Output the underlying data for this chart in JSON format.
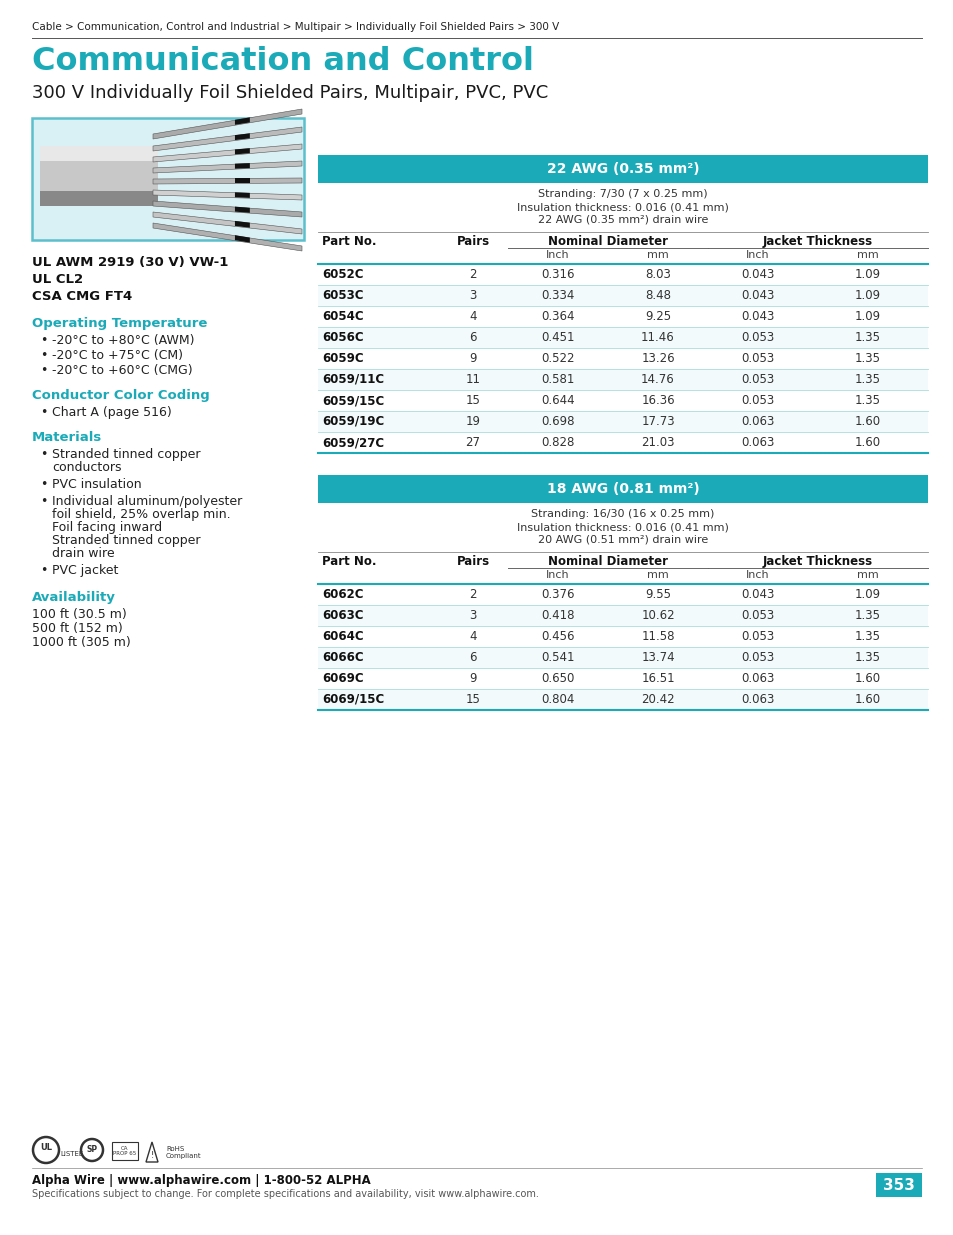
{
  "breadcrumb": "Cable > Communication, Control and Industrial > Multipair > Individually Foil Shielded Pairs > 300 V",
  "main_title": "Communication and Control",
  "subtitle": "300 V Individually Foil Shielded Pairs, Multipair, PVC, PVC",
  "cert_text": "UL AWM 2919 (30 V) VW-1\nUL CL2\nCSA CMG FT4",
  "op_temp_title": "Operating Temperature",
  "op_temp_items": [
    "-20°C to +80°C (AWM)",
    "-20°C to +75°C (CM)",
    "-20°C to +60°C (CMG)"
  ],
  "color_coding_title": "Conductor Color Coding",
  "color_coding_items": [
    "Chart A (page 516)"
  ],
  "materials_title": "Materials",
  "materials_items": [
    "Stranded tinned copper\nconductors",
    "PVC insulation",
    "Individual aluminum/polyester\nfoil shield, 25% overlap min.\nFoil facing inward\nStranded tinned copper\ndrain wire",
    "PVC jacket"
  ],
  "availability_title": "Availability",
  "availability_text": "100 ft (30.5 m)\n500 ft (152 m)\n1000 ft (305 m)",
  "table1_header": "22 AWG (0.35 mm²)",
  "table1_info": "Stranding: 7/30 (7 x 0.25 mm)\nInsulation thickness: 0.016 (0.41 mm)\n22 AWG (0.35 mm²) drain wire",
  "table1_rows": [
    [
      "6052C",
      "2",
      "0.316",
      "8.03",
      "0.043",
      "1.09"
    ],
    [
      "6053C",
      "3",
      "0.334",
      "8.48",
      "0.043",
      "1.09"
    ],
    [
      "6054C",
      "4",
      "0.364",
      "9.25",
      "0.043",
      "1.09"
    ],
    [
      "6056C",
      "6",
      "0.451",
      "11.46",
      "0.053",
      "1.35"
    ],
    [
      "6059C",
      "9",
      "0.522",
      "13.26",
      "0.053",
      "1.35"
    ],
    [
      "6059/11C",
      "11",
      "0.581",
      "14.76",
      "0.053",
      "1.35"
    ],
    [
      "6059/15C",
      "15",
      "0.644",
      "16.36",
      "0.053",
      "1.35"
    ],
    [
      "6059/19C",
      "19",
      "0.698",
      "17.73",
      "0.063",
      "1.60"
    ],
    [
      "6059/27C",
      "27",
      "0.828",
      "21.03",
      "0.063",
      "1.60"
    ]
  ],
  "table2_header": "18 AWG (0.81 mm²)",
  "table2_info": "Stranding: 16/30 (16 x 0.25 mm)\nInsulation thickness: 0.016 (0.41 mm)\n20 AWG (0.51 mm²) drain wire",
  "table2_rows": [
    [
      "6062C",
      "2",
      "0.376",
      "9.55",
      "0.043",
      "1.09"
    ],
    [
      "6063C",
      "3",
      "0.418",
      "10.62",
      "0.053",
      "1.35"
    ],
    [
      "6064C",
      "4",
      "0.456",
      "11.58",
      "0.053",
      "1.35"
    ],
    [
      "6066C",
      "6",
      "0.541",
      "13.74",
      "0.053",
      "1.35"
    ],
    [
      "6069C",
      "9",
      "0.650",
      "16.51",
      "0.063",
      "1.60"
    ],
    [
      "6069/15C",
      "15",
      "0.804",
      "20.42",
      "0.063",
      "1.60"
    ]
  ],
  "footer_left": "Alpha Wire | www.alphawire.com | 1-800-52 ALPHA",
  "footer_sub": "Specifications subject to change. For complete specifications and availability, visit www.alphawire.com.",
  "page_num": "353",
  "teal_color": "#1BAAB8",
  "header_bg": "#1BAAB8",
  "light_blue_bg": "#D9F0F4",
  "row_alt": "#F2FAFB",
  "line_color": "#1BAAB8"
}
